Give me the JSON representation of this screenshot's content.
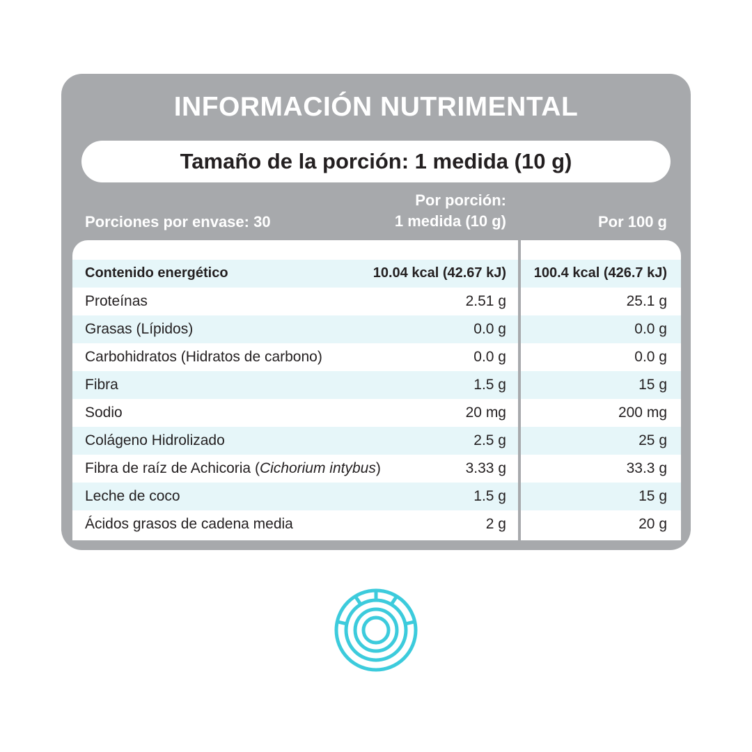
{
  "title": "INFORMACIÓN NUTRIMENTAL",
  "serving_size": "Tamaño de la porción: 1 medida (10 g)",
  "header": {
    "portions": "Porciones por envase: 30",
    "per_portion": [
      "Por porción:",
      "1 medida (10 g)"
    ],
    "per_100g": "Por 100 g"
  },
  "rows": [
    {
      "label": "Contenido energético",
      "per_portion": "10.04 kcal (42.67 kJ)",
      "per_100g": "100.4 kcal (426.7 kJ)"
    },
    {
      "label": "Proteínas",
      "per_portion": "2.51 g",
      "per_100g": "25.1 g"
    },
    {
      "label": "Grasas (Lípidos)",
      "per_portion": "0.0 g",
      "per_100g": "0.0 g"
    },
    {
      "label": "Carbohidratos (Hidratos de carbono)",
      "per_portion": "0.0 g",
      "per_100g": "0.0 g"
    },
    {
      "label": "Fibra",
      "per_portion": "1.5 g",
      "per_100g": "15 g"
    },
    {
      "label": "Sodio",
      "per_portion": "20 mg",
      "per_100g": "200 mg"
    },
    {
      "label": "Colágeno Hidrolizado",
      "per_portion": "2.5 g",
      "per_100g": "25 g"
    },
    {
      "label": [
        "Fibra de raíz de Achicoria (",
        "Cichorium intybus",
        ")"
      ],
      "per_portion": "3.33 g",
      "per_100g": "33.3 g"
    },
    {
      "label": "Leche de coco",
      "per_portion": "1.5 g",
      "per_100g": "15 g"
    },
    {
      "label": "Ácidos grasos de cadena media",
      "per_portion": "2 g",
      "per_100g": "20 g"
    }
  ]
}
